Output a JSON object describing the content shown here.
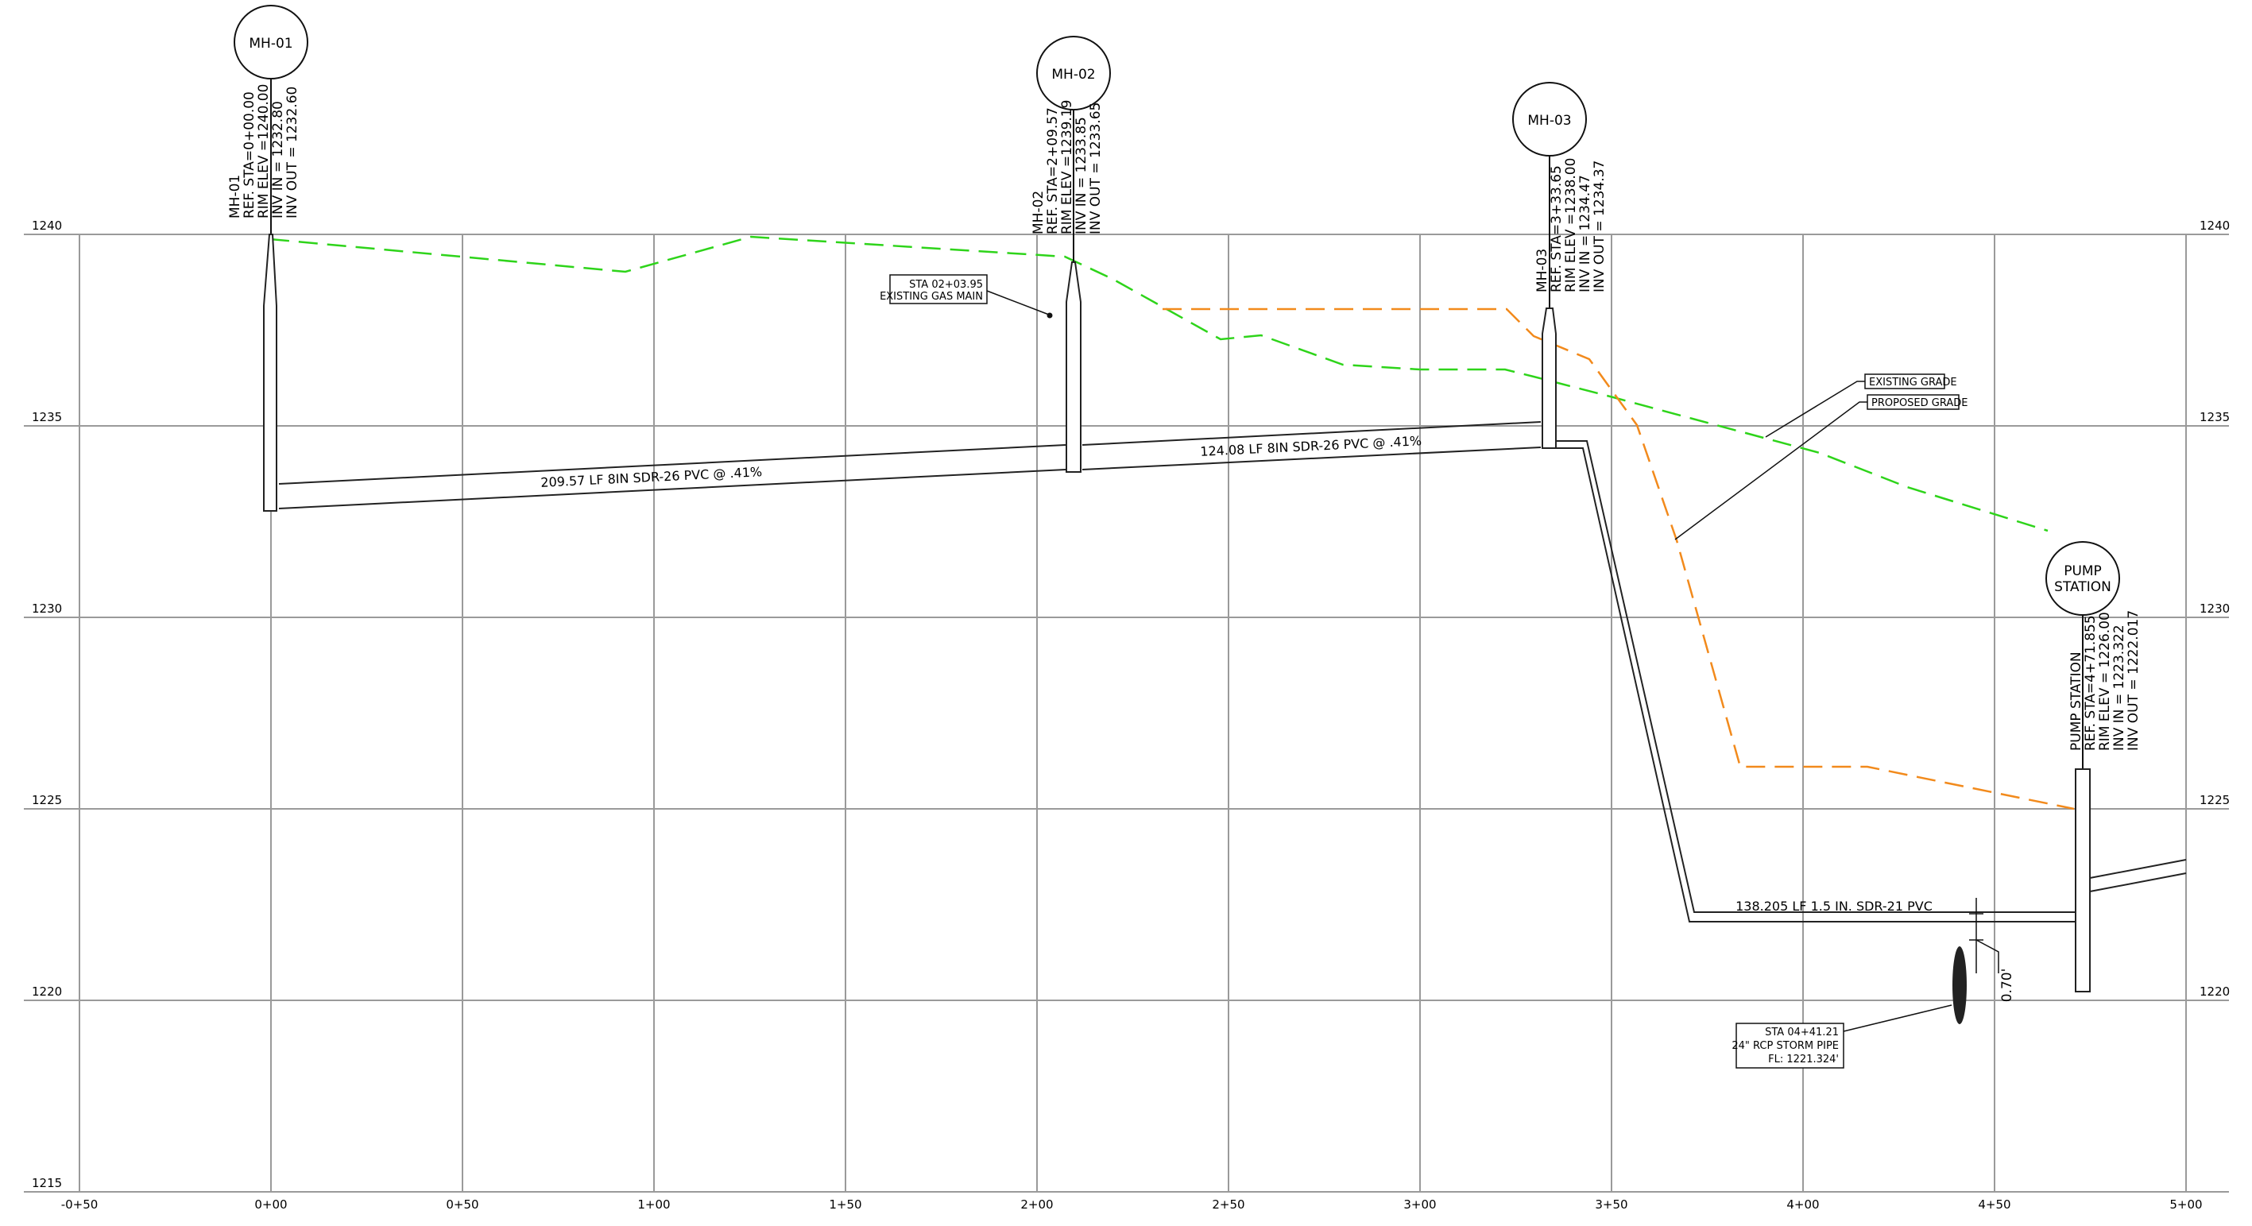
{
  "x_ticks": [
    "-0+50",
    "0+00",
    "0+50",
    "1+00",
    "1+50",
    "2+00",
    "2+50",
    "3+00",
    "3+50",
    "4+00",
    "4+50",
    "5+00"
  ],
  "y_ticks": [
    "1240",
    "1235",
    "1230",
    "1225",
    "1220",
    "1215"
  ],
  "structures": {
    "mh01": {
      "label": "MH-01",
      "notes": [
        "MH-01",
        "REF. STA=0+00.00",
        "RIM ELEV =1240.00",
        "INV IN = 1232.80",
        "INV OUT = 1232.60"
      ]
    },
    "mh02": {
      "label": "MH-02",
      "notes": [
        "MH-02",
        "REF. STA=2+09.57",
        "RIM ELEV =1239.19",
        "INV IN = 1233.85",
        "INV OUT = 1233.65"
      ]
    },
    "mh03": {
      "label": "MH-03",
      "notes": [
        "MH-03",
        "REF. STA=3+33.65",
        "RIM ELEV =1238.00",
        "INV IN = 1234.47",
        "INV OUT = 1234.37"
      ]
    },
    "pump": {
      "label_line1": "PUMP",
      "label_line2": "STATION",
      "notes": [
        "PUMP STATION",
        "REF. STA=4+71.855",
        "RIM ELEV = 1226.00",
        "INV IN = 1223.322",
        "INV OUT = 1222.017"
      ]
    }
  },
  "pipes": {
    "seg1": "209.57 LF 8IN SDR-26 PVC @ .41%",
    "seg2": "124.08 LF 8IN SDR-26 PVC @ .41%",
    "seg3": "138.205 LF 1.5 IN. SDR-21 PVC"
  },
  "callouts": {
    "gas_line1": "STA 02+03.95",
    "gas_line2": "EXISTING GAS MAIN",
    "existing_grade": "EXISTING GRADE",
    "proposed_grade": "PROPOSED GRADE",
    "storm_line1": "STA 04+41.21",
    "storm_line2": "24\" RCP STORM PIPE",
    "storm_line3": "FL: 1221.324'",
    "clearance": "0.70'"
  },
  "colors": {
    "existing_grade": "#2ed41a",
    "proposed_grade": "#f28a1c",
    "grid": "#999999",
    "pipe": "#222222"
  }
}
